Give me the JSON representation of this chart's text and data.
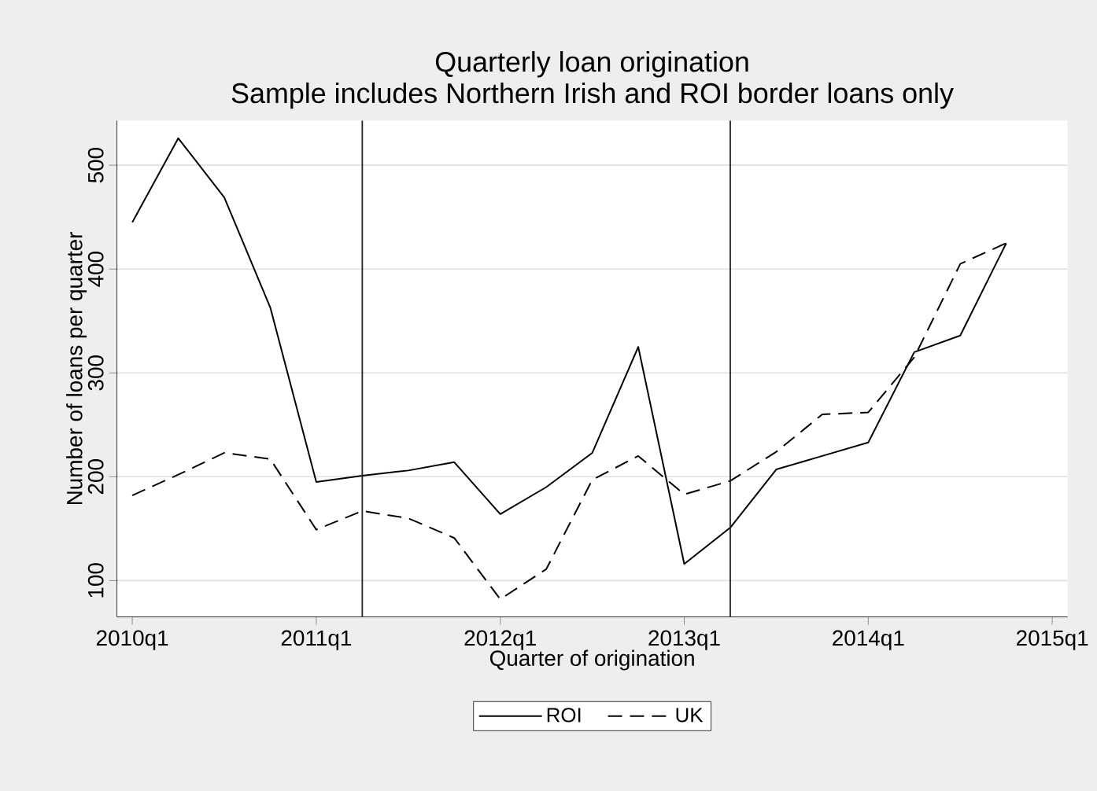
{
  "chart_data": {
    "type": "line",
    "title": "Quarterly loan origination",
    "subtitle": "Sample includes Northern Irish and ROI border loans only",
    "xlabel": "Quarter of origination",
    "ylabel": "Number of loans per quarter",
    "x": [
      "2010-01",
      "2010-04",
      "2010-07",
      "2010-10",
      "2011-01",
      "2011-04",
      "2011-07",
      "2011-10",
      "2012-01",
      "2012-04",
      "2012-07",
      "2012-10",
      "2013-01",
      "2013-04",
      "2013-07",
      "2013-10",
      "2014-01",
      "2014-04",
      "2014-07",
      "2014-10"
    ],
    "series": [
      {
        "name": "ROI",
        "color": "#000000",
        "line_style": "solid",
        "values": [
          445,
          526,
          469,
          363,
          195,
          201,
          206,
          214,
          164,
          190,
          223,
          325,
          116,
          151,
          207,
          220,
          233,
          320,
          336,
          425
        ]
      },
      {
        "name": "UK",
        "color": "#000000",
        "line_style": "dashed",
        "values": [
          182,
          202,
          223,
          217,
          149,
          167,
          160,
          141,
          82,
          111,
          197,
          220,
          183,
          196,
          224,
          260,
          262,
          315,
          405,
          425
        ]
      }
    ],
    "xlim": [
      "2009-12",
      "2015-02"
    ],
    "ylim": [
      65,
      543
    ],
    "xticks": [
      {
        "value": "2010-01",
        "label": "2010q1"
      },
      {
        "value": "2011-01",
        "label": "2011q1"
      },
      {
        "value": "2012-01",
        "label": "2012q1"
      },
      {
        "value": "2013-01",
        "label": "2013q1"
      },
      {
        "value": "2014-01",
        "label": "2014q1"
      },
      {
        "value": "2015-01",
        "label": "2015q1"
      }
    ],
    "yticks": [
      100,
      200,
      300,
      400,
      500
    ],
    "ref_lines": [
      {
        "axis": "x",
        "value": "2011-04"
      },
      {
        "axis": "x",
        "value": "2013-04"
      }
    ],
    "grid": "y",
    "legend": "bottom",
    "marker": "none"
  }
}
